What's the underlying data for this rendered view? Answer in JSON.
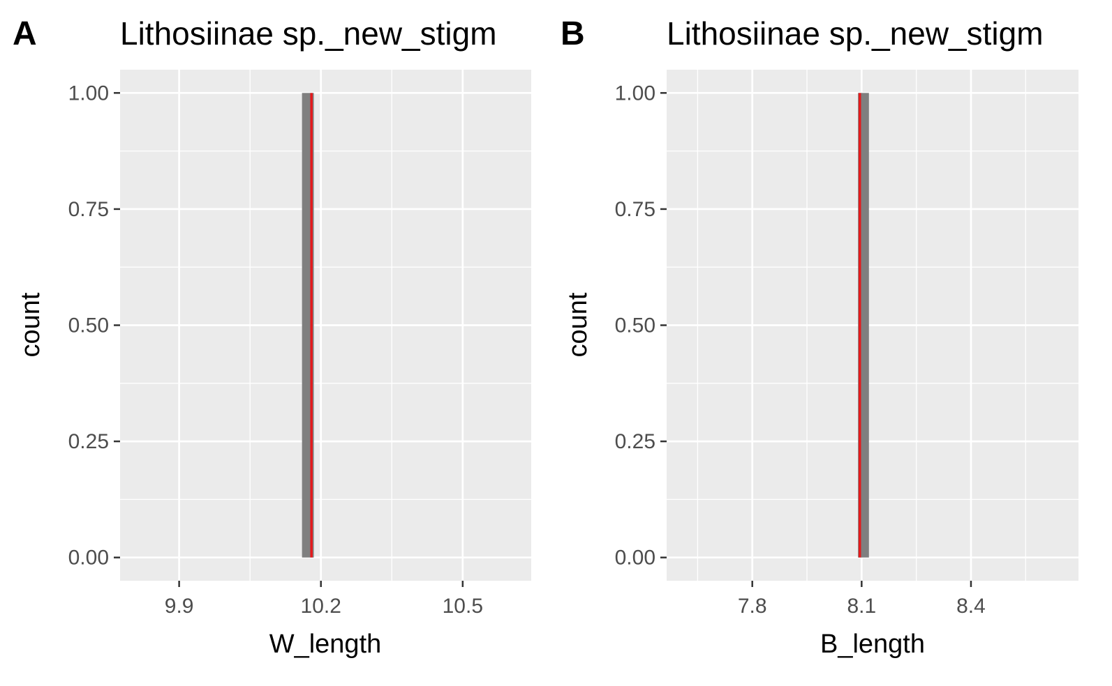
{
  "chart_data": [
    {
      "type": "bar",
      "panel_label": "A",
      "title": "Lithosiinae sp._new_stigm",
      "xlabel": "W_length",
      "ylabel": "count",
      "x_ticks": [
        "9.9",
        "10.2",
        "10.5"
      ],
      "x_tick_values": [
        9.9,
        10.2,
        10.5
      ],
      "xlim": [
        9.775,
        10.645
      ],
      "y_ticks": [
        "0.00",
        "0.25",
        "0.50",
        "0.75",
        "1.00"
      ],
      "y_tick_values": [
        0,
        0.25,
        0.5,
        0.75,
        1
      ],
      "ylim": [
        -0.05,
        1.05
      ],
      "bars": [
        {
          "x_min": 10.16,
          "x_max": 10.185,
          "count": 1
        }
      ],
      "reference_line": {
        "x": 10.18,
        "color": "#e41a1c"
      },
      "bar_color": "#7f7f7f",
      "grid": true,
      "background": "#ebebeb"
    },
    {
      "type": "bar",
      "panel_label": "B",
      "title": "Lithosiinae sp._new_stigm",
      "xlabel": "B_length",
      "ylabel": "count",
      "x_ticks": [
        "7.8",
        "8.1",
        "8.4"
      ],
      "x_tick_values": [
        7.8,
        8.1,
        8.4
      ],
      "xlim": [
        7.565,
        8.695
      ],
      "y_ticks": [
        "0.00",
        "0.25",
        "0.50",
        "0.75",
        "1.00"
      ],
      "y_tick_values": [
        0,
        0.25,
        0.5,
        0.75,
        1
      ],
      "ylim": [
        -0.05,
        1.05
      ],
      "bars": [
        {
          "x_min": 8.09,
          "x_max": 8.12,
          "count": 1
        }
      ],
      "reference_line": {
        "x": 8.095,
        "color": "#e41a1c"
      },
      "bar_color": "#7f7f7f",
      "grid": true,
      "background": "#ebebeb"
    }
  ]
}
